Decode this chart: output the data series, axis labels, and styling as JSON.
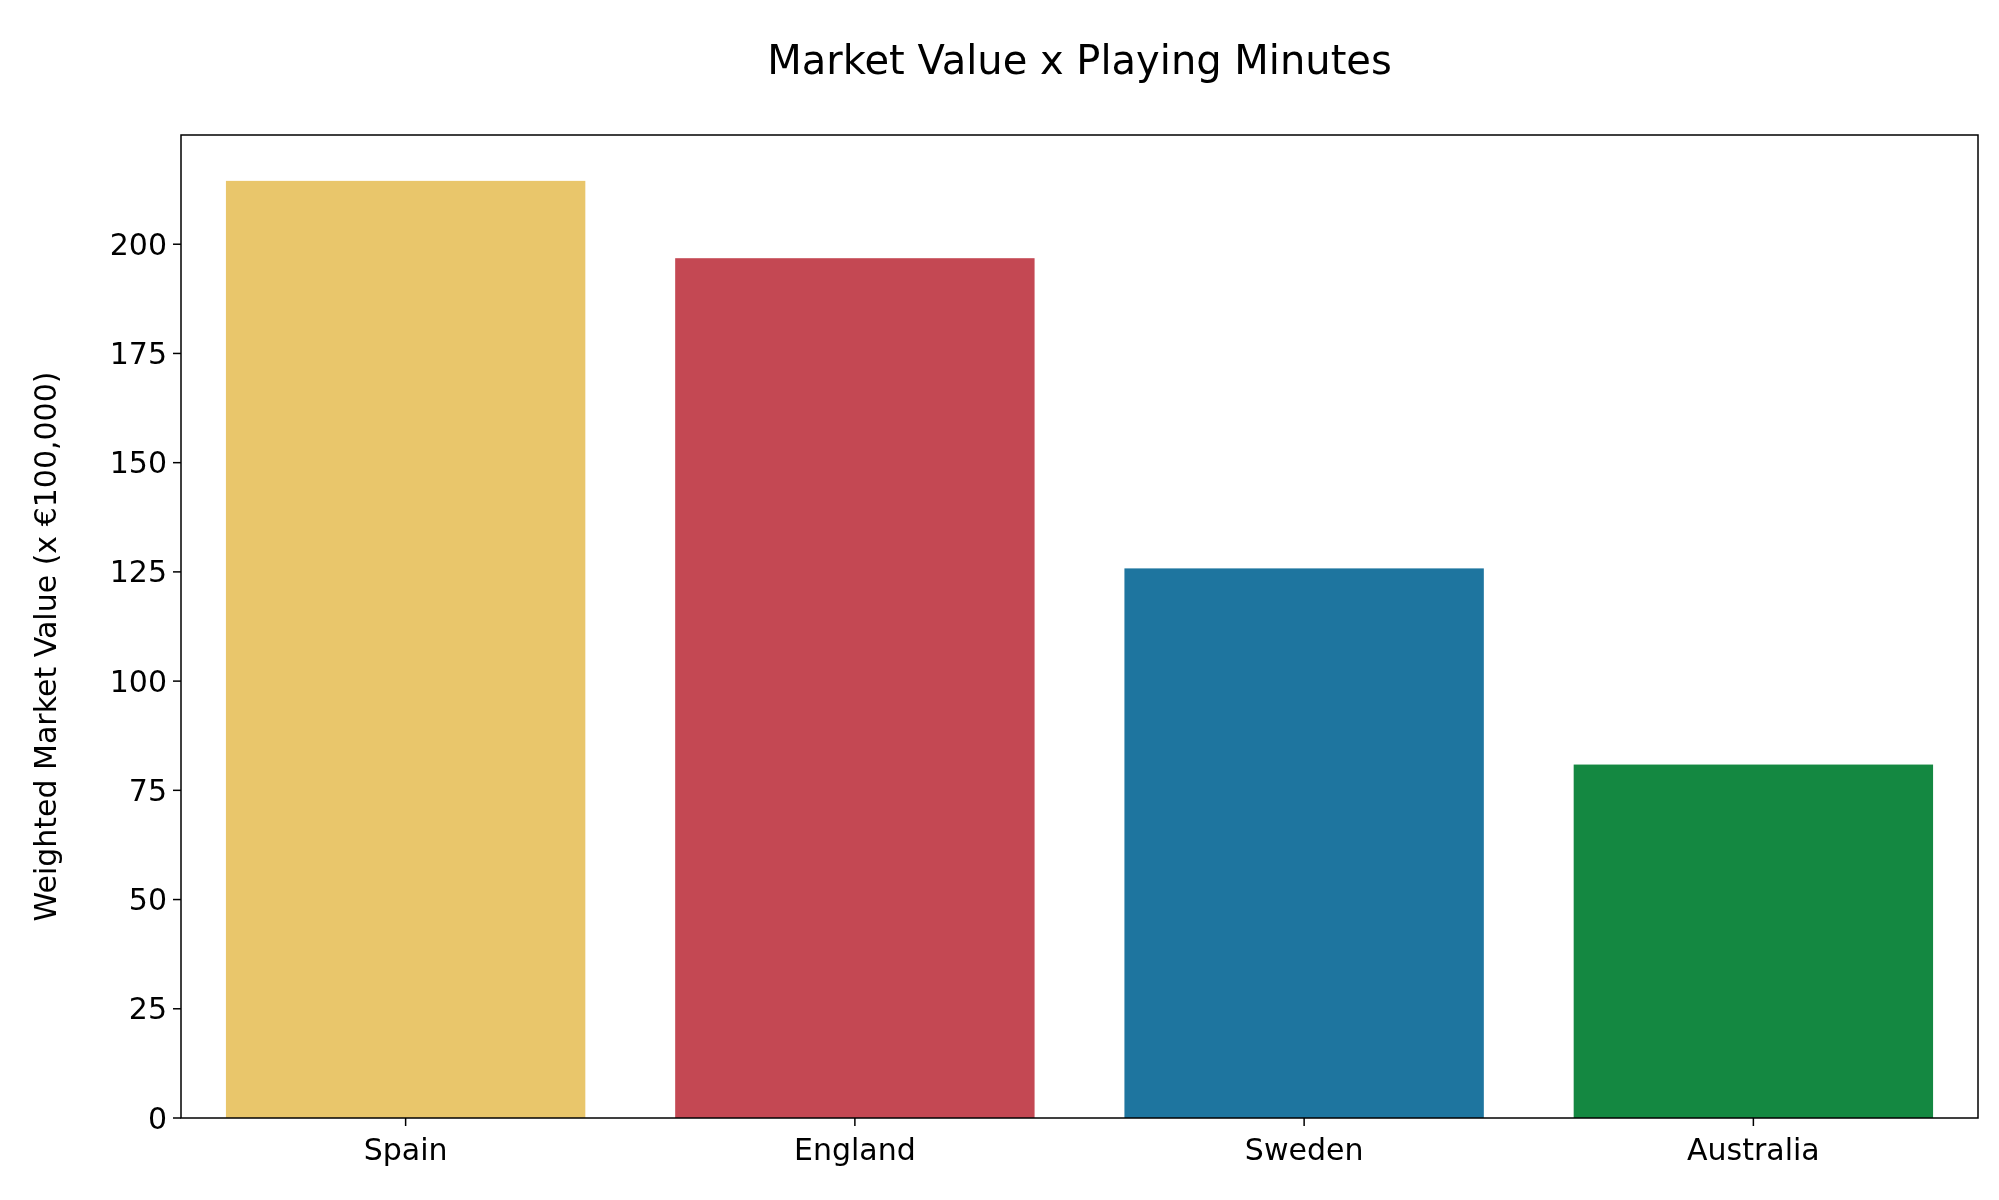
{
  "chart_data": {
    "type": "bar",
    "title": "Market Value x Playing Minutes",
    "ylabel": "Weighted Market Value (x €100,000)",
    "categories": [
      "Spain",
      "England",
      "Sweden",
      "Australia"
    ],
    "values": [
      214.5,
      196.8,
      125.8,
      80.9
    ],
    "colors": [
      "#e9c66b",
      "#c44853",
      "#1e759f",
      "#148841"
    ],
    "ylim": [
      0,
      225
    ],
    "yticks": [
      0,
      25,
      50,
      75,
      100,
      125,
      150,
      175,
      200
    ],
    "grid": false
  }
}
